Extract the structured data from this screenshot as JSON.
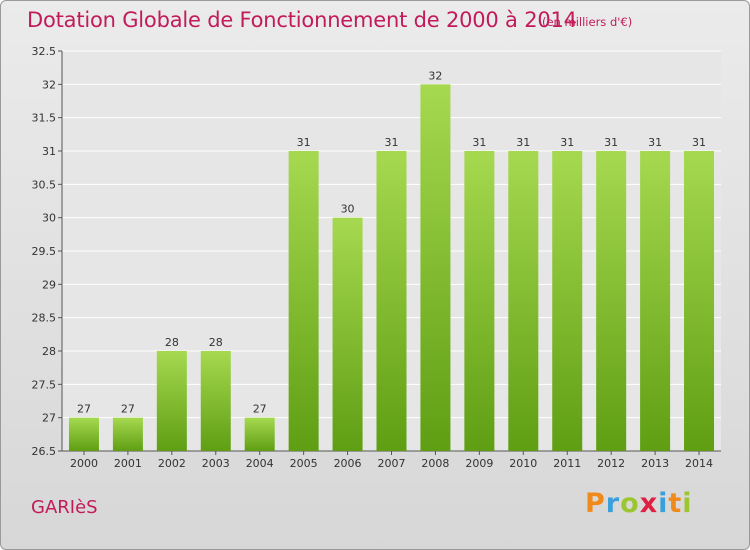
{
  "title": "Dotation Globale de Fonctionnement de 2000 à 2014",
  "unit_note": "(en milliers d'€)",
  "commune": "GARIèS",
  "brand": {
    "letters": [
      "P",
      "r",
      "o",
      "x",
      "i",
      "t",
      "i"
    ],
    "colors": [
      "#f08a1c",
      "#3aa0dc",
      "#9cc630",
      "#e02040",
      "#3aa0dc",
      "#f08a1c",
      "#9cc630"
    ]
  },
  "colors": {
    "title": "#c21b5a",
    "bar_light": "#a6d94f",
    "bar_dark": "#5f9e13"
  },
  "chart_data": {
    "type": "bar",
    "categories": [
      "2000",
      "2001",
      "2002",
      "2003",
      "2004",
      "2005",
      "2006",
      "2007",
      "2008",
      "2009",
      "2010",
      "2011",
      "2012",
      "2013",
      "2014"
    ],
    "values": [
      27,
      27,
      28,
      28,
      27,
      31,
      30,
      31,
      32,
      31,
      31,
      31,
      31,
      31,
      31
    ],
    "ylim": [
      26.5,
      32.5
    ],
    "yticks": [
      "26.5",
      "27",
      "27.5",
      "28",
      "28.5",
      "29",
      "29.5",
      "30",
      "30.5",
      "31",
      "31.5",
      "32",
      "32.5"
    ],
    "grid": true,
    "data_labels": true
  }
}
